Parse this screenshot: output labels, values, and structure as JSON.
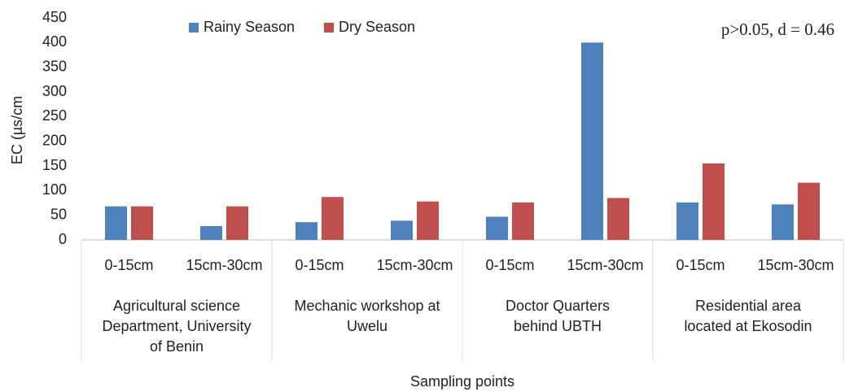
{
  "chart_data": {
    "type": "bar",
    "annotation": "p>0.05, d = 0.46",
    "y_label": "EC (µs/cm",
    "x_label": "Sampling points",
    "categories": [
      "0-15cm",
      "15cm-30cm",
      "0-15cm",
      "15cm-30cm",
      "0-15cm",
      "15cm-30cm",
      "0-15cm",
      "15cm-30cm"
    ],
    "groups": [
      {
        "lines": [
          "Agricultural science",
          "Department, University",
          "of Benin"
        ]
      },
      {
        "lines": [
          "Mechanic workshop at",
          "Uwelu"
        ]
      },
      {
        "lines": [
          "Doctor Quarters",
          "behind UBTH"
        ]
      },
      {
        "lines": [
          "Residential area",
          "located at Ekosodin"
        ]
      }
    ],
    "series": [
      {
        "name": "Rainy Season",
        "color": "#4f81bd",
        "values": [
          68,
          28,
          36,
          39,
          47,
          400,
          76,
          72
        ]
      },
      {
        "name": "Dry Season",
        "color": "#c0504d",
        "values": [
          68,
          68,
          87,
          78,
          76,
          85,
          155,
          116
        ]
      }
    ],
    "ylim": [
      0,
      450
    ],
    "yticks": [
      0,
      50,
      100,
      150,
      200,
      250,
      300,
      350,
      400,
      450
    ],
    "grid": false
  }
}
